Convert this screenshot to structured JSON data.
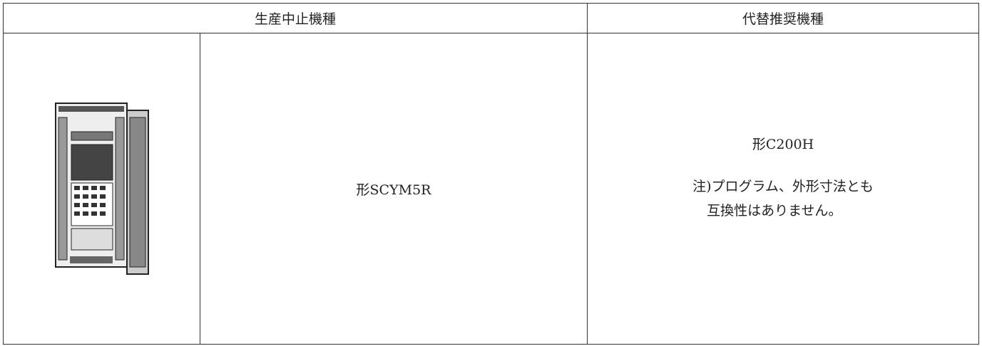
{
  "table": {
    "header": [
      "生産中止機種",
      "代替推奨機種"
    ],
    "rows": [
      {
        "discontinued": "形SCYM5R",
        "replacement": "形C200H",
        "note": [
          "注)プログラム、外形寸法とも",
          "互換性はありません。"
        ]
      }
    ]
  }
}
